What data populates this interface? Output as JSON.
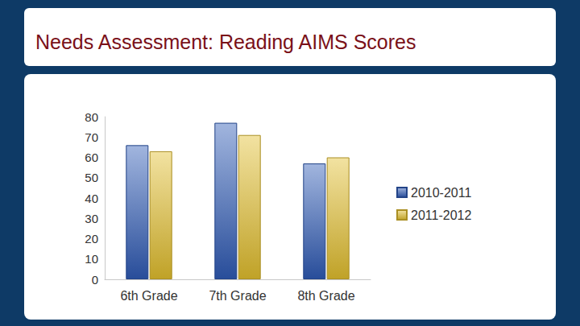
{
  "chart_data": {
    "type": "bar",
    "title": "Needs Assessment: Reading AIMS Scores",
    "categories": [
      "6th Grade",
      "7th Grade",
      "8th Grade"
    ],
    "series": [
      {
        "name": "2010-2011",
        "color": "#2f5bb5",
        "values": [
          66,
          77,
          57
        ]
      },
      {
        "name": "2011-2012",
        "color": "#e2bf2e",
        "values": [
          63,
          71,
          60
        ]
      }
    ],
    "ylim": [
      0,
      80
    ],
    "yticks": [
      0,
      10,
      20,
      30,
      40,
      50,
      60,
      70,
      80
    ],
    "grid": false,
    "legend": "right"
  }
}
